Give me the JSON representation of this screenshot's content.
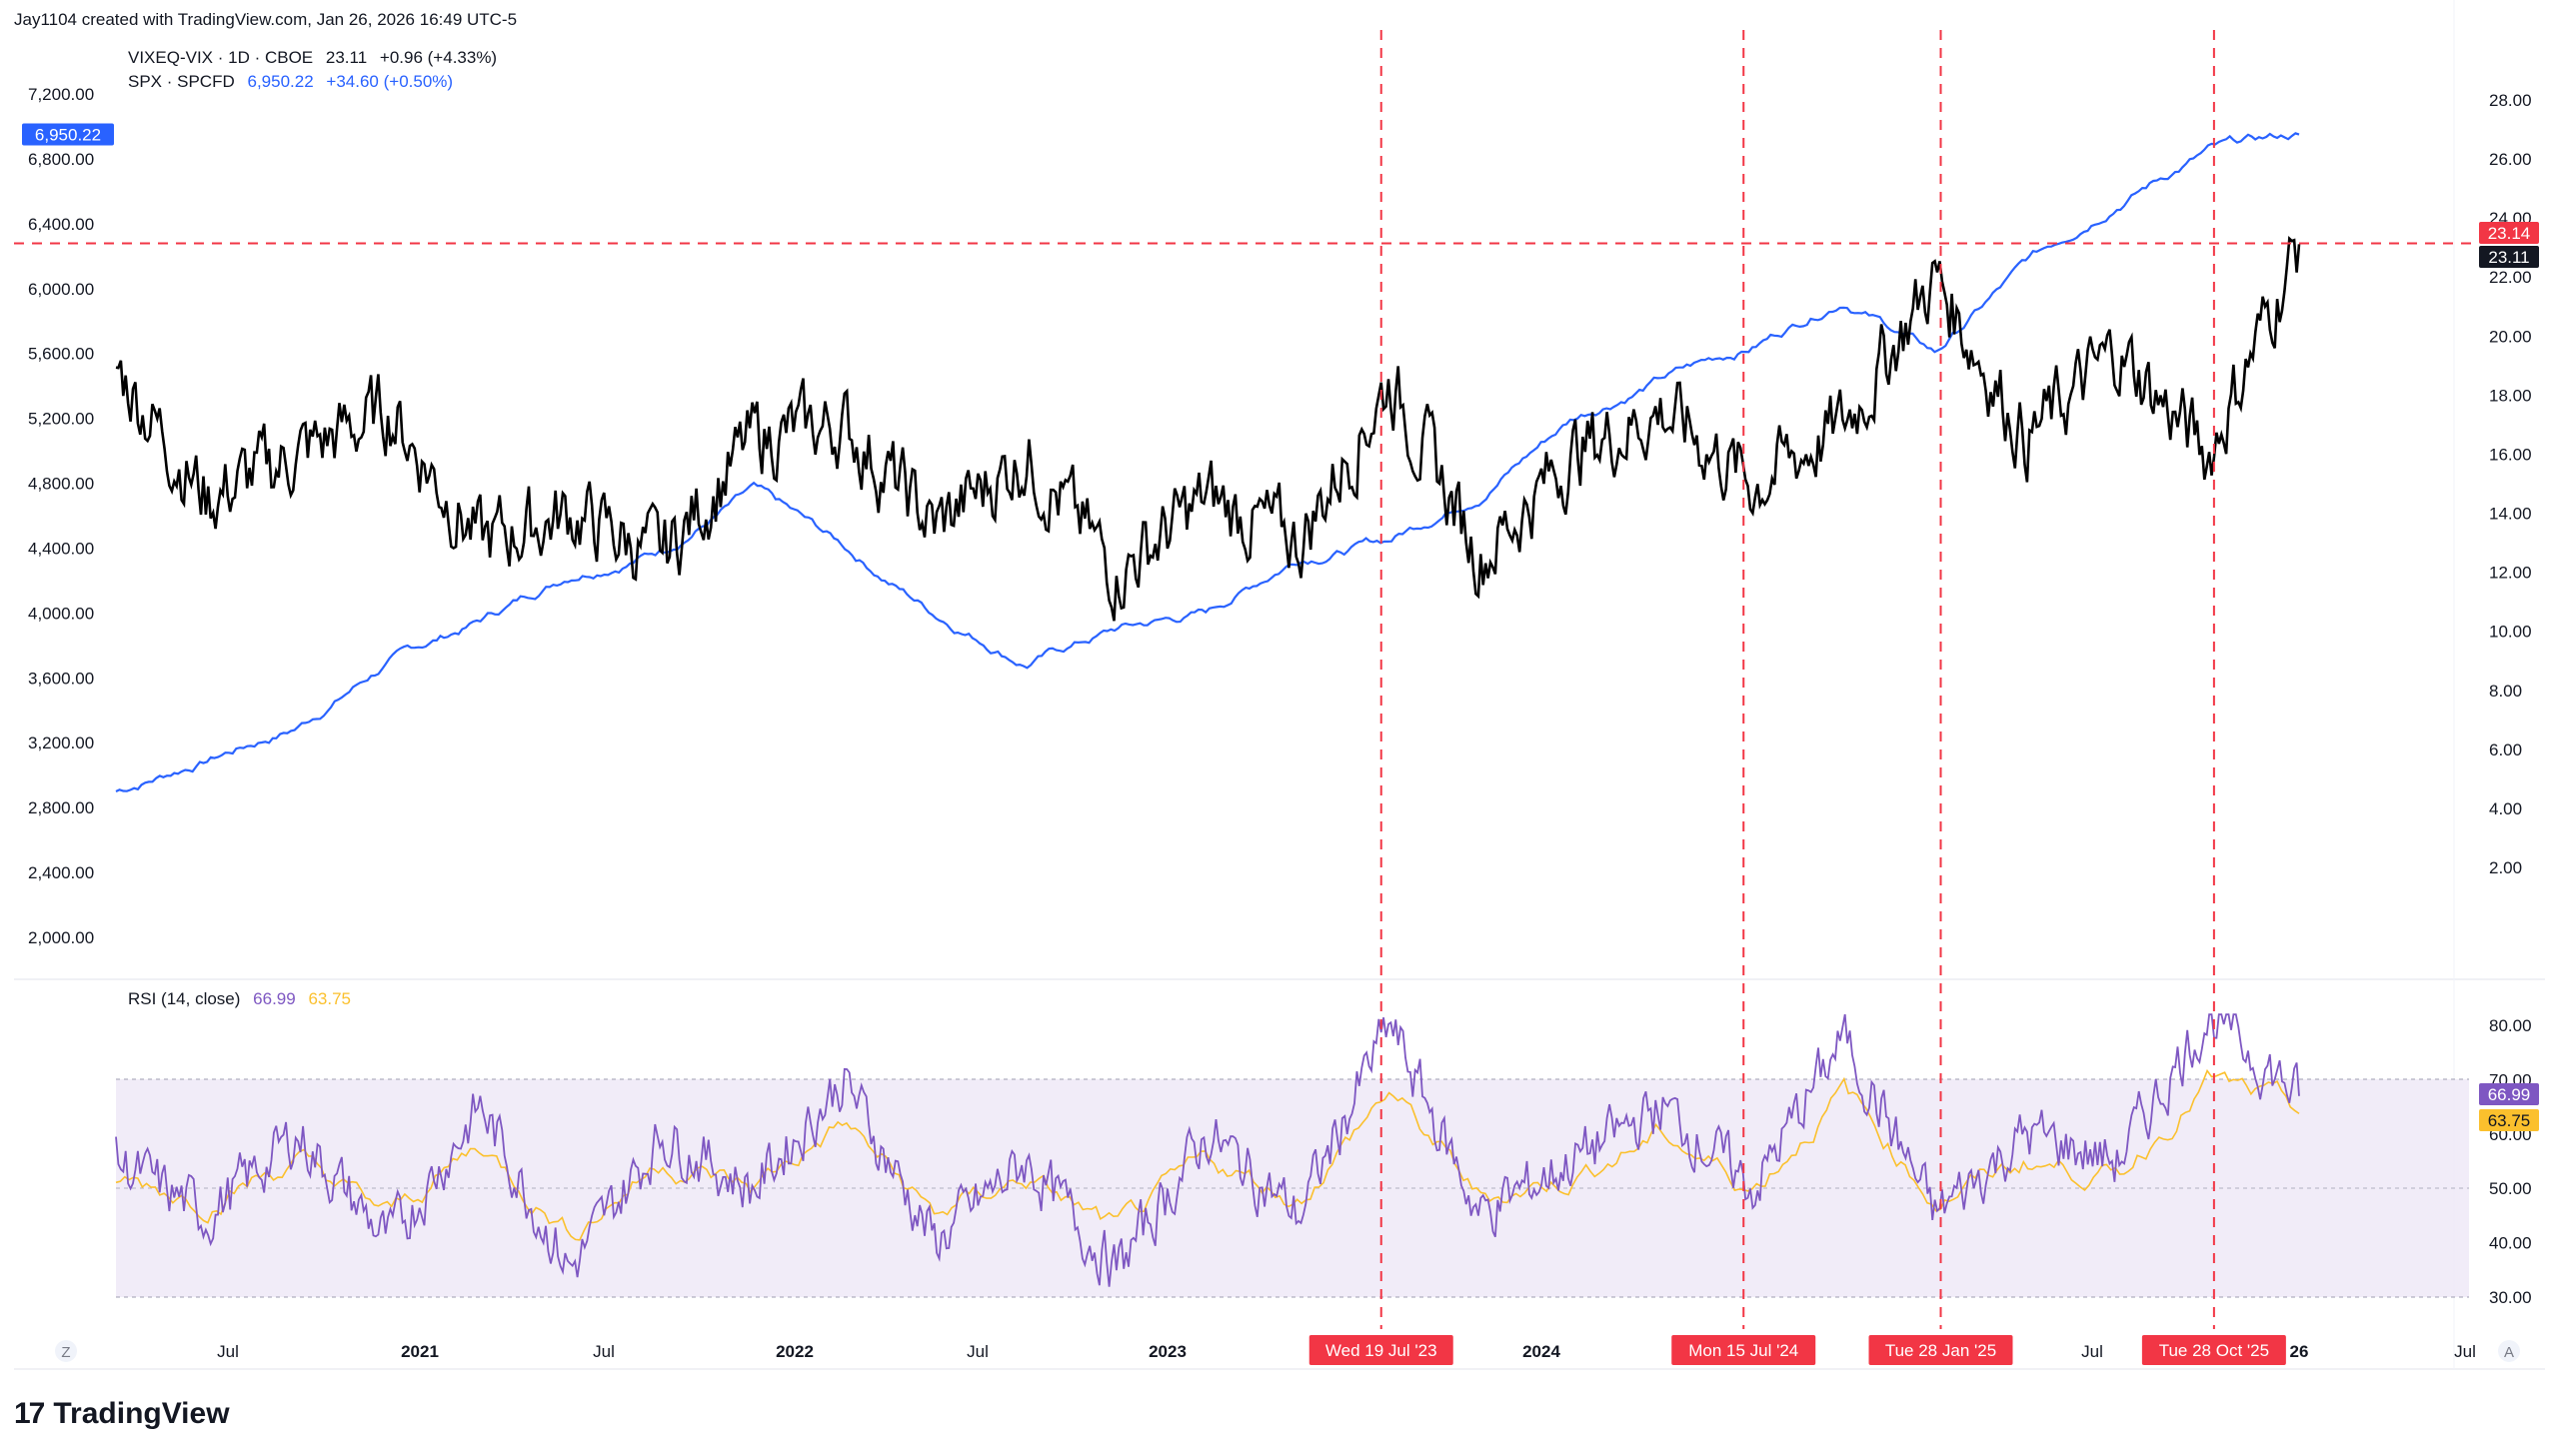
{
  "header": {
    "credit": "Jay1104 created with TradingView.com, Jan 26, 2026 16:49 UTC-5"
  },
  "legend_main": {
    "vix_symbol": "VIXEQ-VIX · 1D · CBOE",
    "vix_value": "23.11",
    "vix_change": "+0.96 (+4.33%)",
    "spx_symbol": "SPX · SPCFD",
    "spx_value": "6,950.22",
    "spx_change": "+34.60 (+0.50%)"
  },
  "legend_rsi": {
    "label": "RSI (14, close)",
    "rsi_value": "66.99",
    "ma_value": "63.75"
  },
  "badges": {
    "spx_last": "6,950.22",
    "hline": "23.14",
    "vix_last": "23.11",
    "rsi_last": "66.99",
    "rsi_ma_last": "63.75"
  },
  "footer": {
    "brand": "TradingView",
    "z_button": "Z",
    "a_button": "A"
  },
  "colors": {
    "vix": "#000000",
    "spx": "#2962ff",
    "rsi": "#7e57c2",
    "rsi_ma": "#fbc02d",
    "event": "#f23645",
    "rsi_band": "#ede7f6"
  },
  "chart_data": [
    {
      "type": "line",
      "x": [
        "2020-03",
        "2020-06",
        "2020-09",
        "2020-12",
        "2021-03",
        "2021-06",
        "2021-09",
        "2021-12",
        "2022-03",
        "2022-06",
        "2022-09",
        "2022-12",
        "2023-03",
        "2023-06",
        "2023-09",
        "2023-12",
        "2024-03",
        "2024-06",
        "2024-09",
        "2024-12",
        "2025-03",
        "2025-06",
        "2025-09",
        "2025-12",
        "2026-01"
      ],
      "series": [
        {
          "name": "VIXEQ-VIX · 1D · CBOE",
          "axis": "right",
          "values": [
            19.0,
            14.5,
            16.0,
            17.5,
            13.0,
            14.0,
            12.5,
            16.5,
            17.0,
            13.5,
            16.0,
            12.0,
            14.5,
            13.0,
            18.5,
            12.5,
            16.0,
            17.5,
            15.0,
            17.0,
            22.0,
            16.5,
            19.5,
            16.0,
            23.11
          ]
        },
        {
          "name": "SPX · SPCFD",
          "axis": "left",
          "values": [
            2900,
            3100,
            3300,
            3700,
            3950,
            4250,
            4400,
            4750,
            4400,
            4000,
            3700,
            3900,
            4000,
            4350,
            4450,
            4750,
            5200,
            5450,
            5650,
            5950,
            5600,
            6150,
            6550,
            6850,
            6950
          ]
        }
      ],
      "left_axis": {
        "ticks": [
          "7,200.00",
          "6,800.00",
          "6,400.00",
          "6,000.00",
          "5,600.00",
          "5,200.00",
          "4,800.00",
          "4,400.00",
          "4,000.00",
          "3,600.00",
          "3,200.00",
          "2,800.00",
          "2,400.00",
          "2,000.00"
        ],
        "ylim": [
          2000,
          7200
        ]
      },
      "right_axis": {
        "ticks": [
          "28.00",
          "26.00",
          "24.00",
          "22.00",
          "20.00",
          "18.00",
          "16.00",
          "14.00",
          "12.00",
          "10.00",
          "8.00",
          "6.00",
          "4.00",
          "2.00"
        ],
        "ylim": [
          2,
          28
        ]
      },
      "horizontal_line": 23.14
    },
    {
      "type": "line",
      "series": [
        {
          "name": "RSI (14, close)",
          "values": [
            55,
            45,
            60,
            40,
            65,
            35,
            60,
            50,
            70,
            40,
            55,
            35,
            60,
            45,
            80,
            45,
            55,
            65,
            50,
            78,
            45,
            60,
            55,
            82,
            66.99
          ]
        },
        {
          "name": "MA",
          "values": [
            52,
            48,
            55,
            45,
            58,
            42,
            55,
            50,
            62,
            45,
            52,
            42,
            55,
            48,
            68,
            48,
            52,
            60,
            50,
            68,
            48,
            55,
            52,
            70,
            63.75
          ]
        }
      ],
      "y_ticks": [
        "80.00",
        "70.00",
        "60.00",
        "50.00",
        "40.00",
        "30.00"
      ],
      "ylim": [
        25,
        85
      ],
      "band": [
        30,
        70
      ]
    }
  ],
  "x_axis": {
    "ticks": [
      {
        "label": "Jul",
        "bold": false
      },
      {
        "label": "2021",
        "bold": true
      },
      {
        "label": "Jul",
        "bold": false
      },
      {
        "label": "2022",
        "bold": true
      },
      {
        "label": "Jul",
        "bold": false
      },
      {
        "label": "2023",
        "bold": true
      },
      {
        "label": "2024",
        "bold": true
      },
      {
        "label": "Jul",
        "bold": false
      },
      {
        "label": "26",
        "bold": true
      },
      {
        "label": "Jul",
        "bold": false
      }
    ]
  },
  "events": [
    {
      "label": "Wed 19 Jul '23",
      "date": "2023-07-19"
    },
    {
      "label": "Mon 15 Jul '24",
      "date": "2024-07-15"
    },
    {
      "label": "Tue 28 Jan '25",
      "date": "2025-01-28"
    },
    {
      "label": "Tue 28 Oct '25",
      "date": "2025-10-28"
    }
  ]
}
